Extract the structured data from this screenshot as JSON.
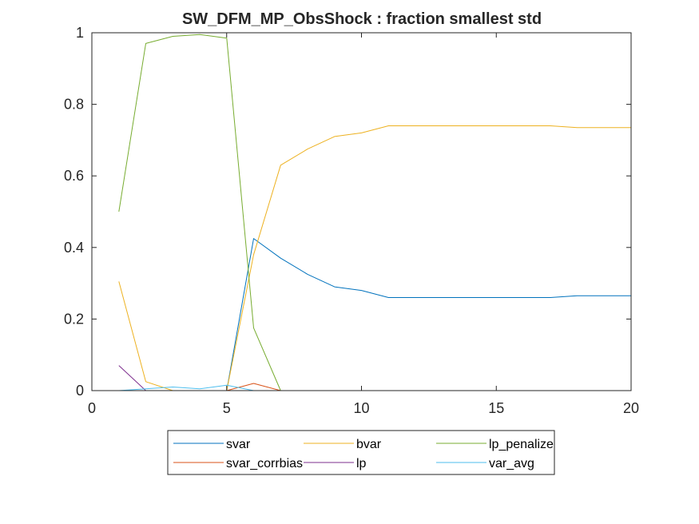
{
  "chart_data": {
    "type": "line",
    "title": "SW_DFM_MP_ObsShock : fraction smallest std",
    "xlabel": "",
    "ylabel": "",
    "xlim": [
      0,
      20
    ],
    "ylim": [
      0,
      1
    ],
    "xticks": [
      0,
      5,
      10,
      15,
      20
    ],
    "yticks": [
      0,
      0.2,
      0.4,
      0.6,
      0.8,
      1
    ],
    "ytick_labels": [
      "0",
      "0.2",
      "0.4",
      "0.6",
      "0.8",
      "1"
    ],
    "grid": false,
    "legend_position": "bottom-outside",
    "legend_columns": 3,
    "x": [
      1,
      2,
      3,
      4,
      5,
      6,
      7,
      8,
      9,
      10,
      11,
      12,
      13,
      14,
      15,
      16,
      17,
      18,
      19,
      20
    ],
    "series": [
      {
        "name": "svar",
        "color": "#0072BD",
        "values": [
          0,
          0,
          0,
          0,
          0,
          0.425,
          0.37,
          0.325,
          0.29,
          0.28,
          0.26,
          0.26,
          0.26,
          0.26,
          0.26,
          0.26,
          0.26,
          0.265,
          0.265,
          0.265
        ]
      },
      {
        "name": "svar_corrbias",
        "color": "#D95319",
        "values": [
          0,
          0,
          0,
          0,
          0,
          0.02,
          0,
          0,
          0,
          0,
          0,
          0,
          0,
          0,
          0,
          0,
          0,
          0,
          0,
          0
        ]
      },
      {
        "name": "bvar",
        "color": "#EDB120",
        "values": [
          0.305,
          0.025,
          0,
          0,
          0,
          0.38,
          0.63,
          0.675,
          0.71,
          0.72,
          0.74,
          0.74,
          0.74,
          0.74,
          0.74,
          0.74,
          0.74,
          0.735,
          0.735,
          0.735
        ]
      },
      {
        "name": "lp",
        "color": "#7E2F8E",
        "values": [
          0.07,
          0,
          0,
          0,
          0,
          0,
          0,
          0,
          0,
          0,
          0,
          0,
          0,
          0,
          0,
          0,
          0,
          0,
          0,
          0
        ]
      },
      {
        "name": "lp_penalize",
        "color": "#77AC30",
        "values": [
          0.5,
          0.97,
          0.99,
          0.995,
          0.985,
          0.175,
          0,
          0,
          0,
          0,
          0,
          0,
          0,
          0,
          0,
          0,
          0,
          0,
          0,
          0
        ]
      },
      {
        "name": "var_avg",
        "color": "#4DBEEE",
        "values": [
          0,
          0.005,
          0.01,
          0.005,
          0.015,
          0,
          0,
          0,
          0,
          0,
          0,
          0,
          0,
          0,
          0,
          0,
          0,
          0,
          0,
          0
        ]
      }
    ],
    "legend_order": [
      "svar",
      "bvar",
      "lp_penalize",
      "svar_corrbias",
      "lp",
      "var_avg"
    ]
  }
}
